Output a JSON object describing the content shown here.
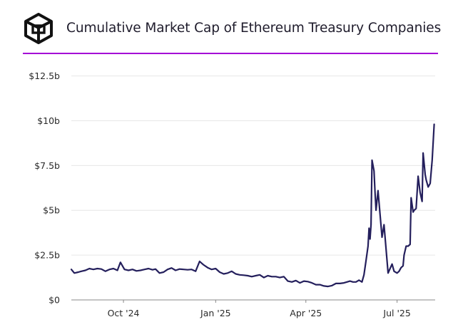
{
  "title": "Cumulative Market Cap of Ethereum Treasury Companies",
  "logo_icon": "cube-logo-icon",
  "colors": {
    "line": "#241f5c",
    "divider": "#a400d6",
    "grid": "#e6e6e6",
    "text": "#1f1c2c"
  },
  "chart_data": {
    "type": "line",
    "title": "Cumulative Market Cap of Ethereum Treasury Companies",
    "xlabel": "",
    "ylabel": "",
    "y_unit": "USD billions",
    "ylim": [
      0,
      13
    ],
    "y_ticks": [
      {
        "value": 0,
        "label": "$0"
      },
      {
        "value": 2.5,
        "label": "$2.5b"
      },
      {
        "value": 5,
        "label": "$5b"
      },
      {
        "value": 7.5,
        "label": "$7.5b"
      },
      {
        "value": 10,
        "label": "$10b"
      },
      {
        "value": 12.5,
        "label": "$12.5b"
      }
    ],
    "xlim": [
      "2024-08-10",
      "2025-08-08"
    ],
    "x_ticks": [
      {
        "value": "2024-10-01",
        "label": "Oct '24"
      },
      {
        "value": "2025-01-01",
        "label": "Jan '25"
      },
      {
        "value": "2025-04-01",
        "label": "Apr '25"
      },
      {
        "value": "2025-07-01",
        "label": "Jul '25"
      }
    ],
    "grid": "horizontal",
    "legend": "none",
    "series": [
      {
        "x": [
          "2024-08-10",
          "2024-08-13",
          "2024-08-17",
          "2024-08-20",
          "2024-08-24",
          "2024-08-28",
          "2024-09-01",
          "2024-09-05",
          "2024-09-09",
          "2024-09-13",
          "2024-09-17",
          "2024-09-21",
          "2024-09-25",
          "2024-09-28",
          "2024-10-02",
          "2024-10-06",
          "2024-10-10",
          "2024-10-14",
          "2024-10-18",
          "2024-10-22",
          "2024-10-26",
          "2024-10-30",
          "2024-11-02",
          "2024-11-06",
          "2024-11-10",
          "2024-11-14",
          "2024-11-18",
          "2024-11-22",
          "2024-11-26",
          "2024-11-30",
          "2024-12-04",
          "2024-12-08",
          "2024-12-12",
          "2024-12-16",
          "2024-12-20",
          "2024-12-24",
          "2024-12-28",
          "2025-01-01",
          "2025-01-05",
          "2025-01-09",
          "2025-01-13",
          "2025-01-17",
          "2025-01-21",
          "2025-01-25",
          "2025-01-29",
          "2025-02-02",
          "2025-02-06",
          "2025-02-10",
          "2025-02-14",
          "2025-02-18",
          "2025-02-22",
          "2025-02-26",
          "2025-03-02",
          "2025-03-06",
          "2025-03-10",
          "2025-03-14",
          "2025-03-18",
          "2025-03-22",
          "2025-03-26",
          "2025-03-30",
          "2025-04-03",
          "2025-04-07",
          "2025-04-11",
          "2025-04-15",
          "2025-04-19",
          "2025-04-23",
          "2025-04-27",
          "2025-05-01",
          "2025-05-05",
          "2025-05-09",
          "2025-05-12",
          "2025-05-15",
          "2025-05-18",
          "2025-05-21",
          "2025-05-24",
          "2025-05-27",
          "2025-05-29",
          "2025-05-31",
          "2025-06-02",
          "2025-06-03",
          "2025-06-04",
          "2025-06-05",
          "2025-06-06",
          "2025-06-08",
          "2025-06-09",
          "2025-06-10",
          "2025-06-12",
          "2025-06-14",
          "2025-06-16",
          "2025-06-18",
          "2025-06-22",
          "2025-06-26",
          "2025-06-28",
          "2025-07-01",
          "2025-07-03",
          "2025-07-05",
          "2025-07-07",
          "2025-07-08",
          "2025-07-10",
          "2025-07-12",
          "2025-07-14",
          "2025-07-15",
          "2025-07-17",
          "2025-07-18",
          "2025-07-20",
          "2025-07-22",
          "2025-07-24",
          "2025-07-26",
          "2025-07-27",
          "2025-07-29",
          "2025-07-30",
          "2025-08-01",
          "2025-08-03",
          "2025-08-05",
          "2025-08-07"
        ],
        "y": [
          1.7,
          1.5,
          1.55,
          1.6,
          1.65,
          1.75,
          1.7,
          1.75,
          1.72,
          1.6,
          1.7,
          1.75,
          1.65,
          2.1,
          1.7,
          1.65,
          1.7,
          1.62,
          1.65,
          1.7,
          1.75,
          1.68,
          1.72,
          1.5,
          1.55,
          1.7,
          1.78,
          1.65,
          1.72,
          1.7,
          1.68,
          1.7,
          1.6,
          2.15,
          1.95,
          1.8,
          1.7,
          1.75,
          1.55,
          1.45,
          1.5,
          1.6,
          1.45,
          1.4,
          1.38,
          1.35,
          1.3,
          1.35,
          1.4,
          1.25,
          1.35,
          1.3,
          1.3,
          1.25,
          1.3,
          1.05,
          1.0,
          1.08,
          0.95,
          1.05,
          1.02,
          0.95,
          0.85,
          0.85,
          0.78,
          0.75,
          0.8,
          0.92,
          0.92,
          0.95,
          1.0,
          1.05,
          1.0,
          1.0,
          1.1,
          1.0,
          1.4,
          2.2,
          3.0,
          4.0,
          3.4,
          4.2,
          7.8,
          7.2,
          6.0,
          5.0,
          6.1,
          4.8,
          3.5,
          4.2,
          1.5,
          2.0,
          1.6,
          1.5,
          1.6,
          1.8,
          1.9,
          2.5,
          3.0,
          3.0,
          3.1,
          5.7,
          4.9,
          5.0,
          5.1,
          6.9,
          6.0,
          5.5,
          8.2,
          7.0,
          6.7,
          6.3,
          6.5,
          7.8,
          9.8
        ]
      }
    ]
  }
}
